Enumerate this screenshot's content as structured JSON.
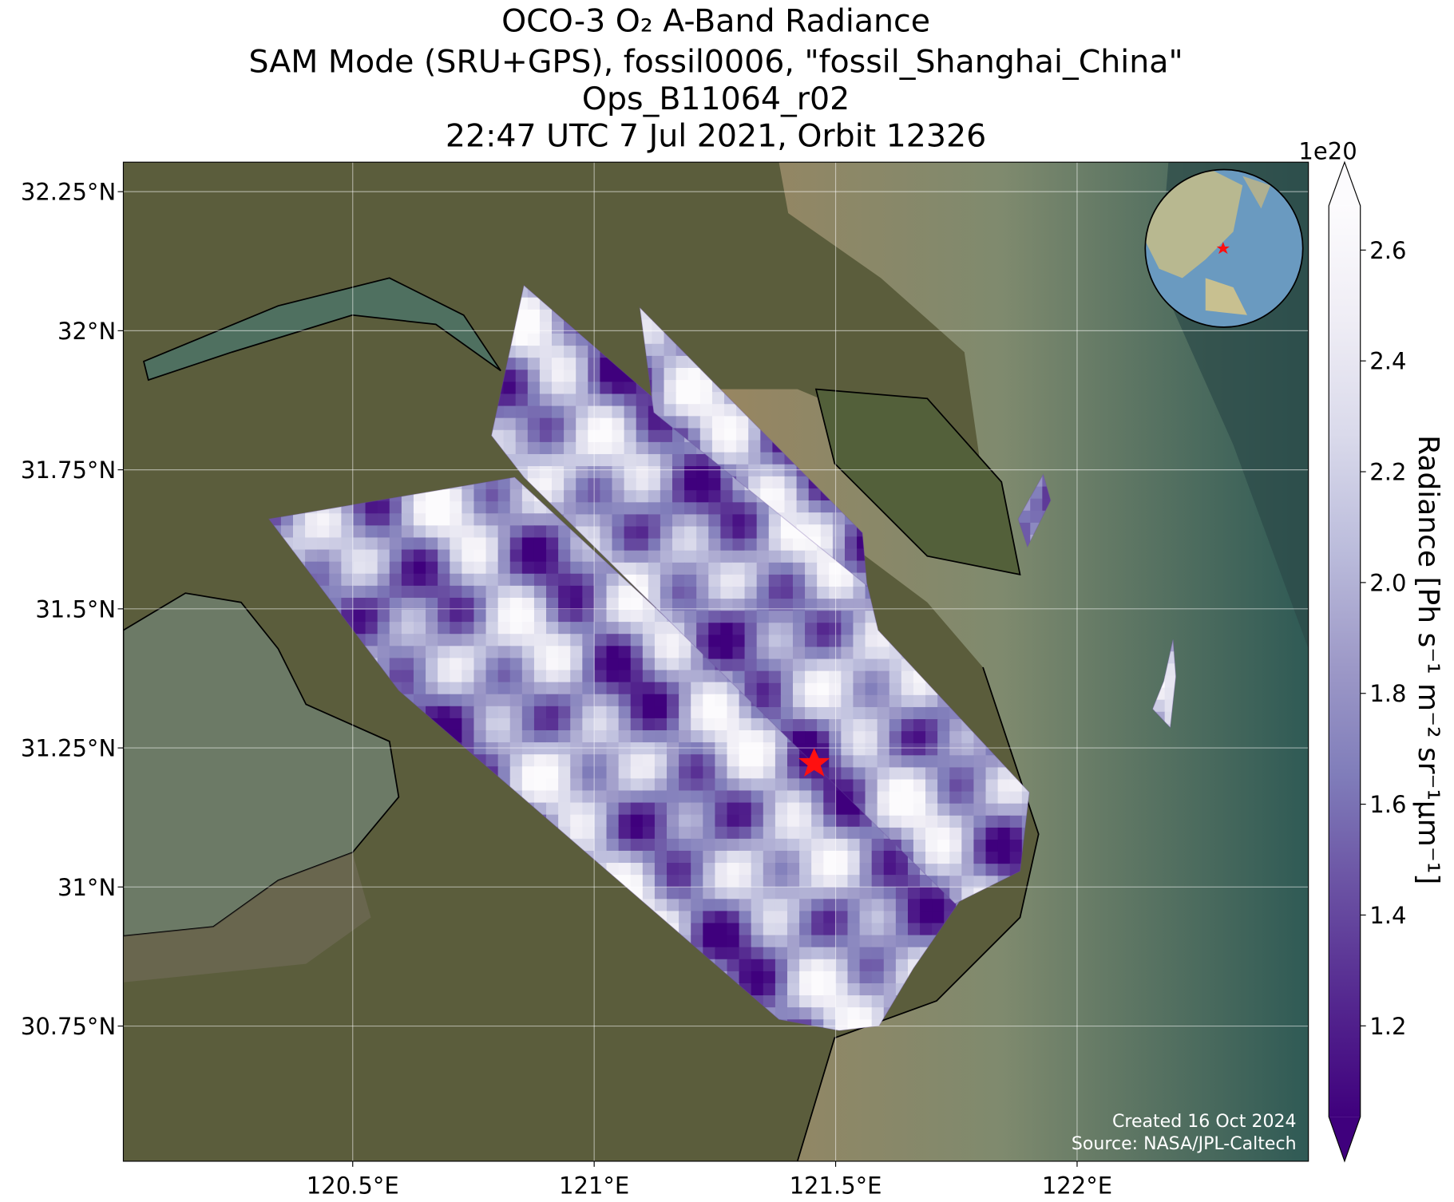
{
  "title": [
    "OCO-3 O₂ A-Band Radiance",
    "SAM Mode (SRU+GPS), fossil0006, \"fossil_Shanghai_China\"",
    "Ops_B11064_r02",
    "22:47 UTC 7 Jul 2021, Orbit 12326"
  ],
  "map": {
    "xlim": [
      120.025,
      122.479
    ],
    "ylim": [
      30.507,
      32.303
    ],
    "xticks": [
      {
        "value": 120.5,
        "label": "120.5°E"
      },
      {
        "value": 121,
        "label": "121°E"
      },
      {
        "value": 121.5,
        "label": "121.5°E"
      },
      {
        "value": 122,
        "label": "122°E"
      }
    ],
    "yticks": [
      {
        "value": 32.25,
        "label": "32.25°N"
      },
      {
        "value": 32,
        "label": "32°N"
      },
      {
        "value": 31.75,
        "label": "31.75°N"
      },
      {
        "value": 31.5,
        "label": "31.5°N"
      },
      {
        "value": 31.25,
        "label": "31.25°N"
      },
      {
        "value": 31,
        "label": "31°N"
      },
      {
        "value": 30.75,
        "label": "30.75°N"
      }
    ],
    "grid": true
  },
  "colorbar": {
    "label": "Radiance [Ph s⁻¹ m⁻² sr⁻¹μm⁻¹]",
    "offset_label": "1e20",
    "lim": [
      1.036,
      2.68
    ],
    "ticks": [
      1.2,
      1.4,
      1.6,
      1.8,
      {
        "value": 2,
        "label": "2.0"
      },
      2.2,
      2.4,
      2.6
    ],
    "colormap": [
      "#3f007d",
      "#54278f",
      "#6a51a3",
      "#807dba",
      "#9e9ac8",
      "#bcbddc",
      "#dadaeb",
      "#efedf5",
      "#fcfbfd"
    ]
  },
  "credits": [
    "Created 16 Oct 2024",
    "Source: NASA/JPL-Caltech"
  ]
}
